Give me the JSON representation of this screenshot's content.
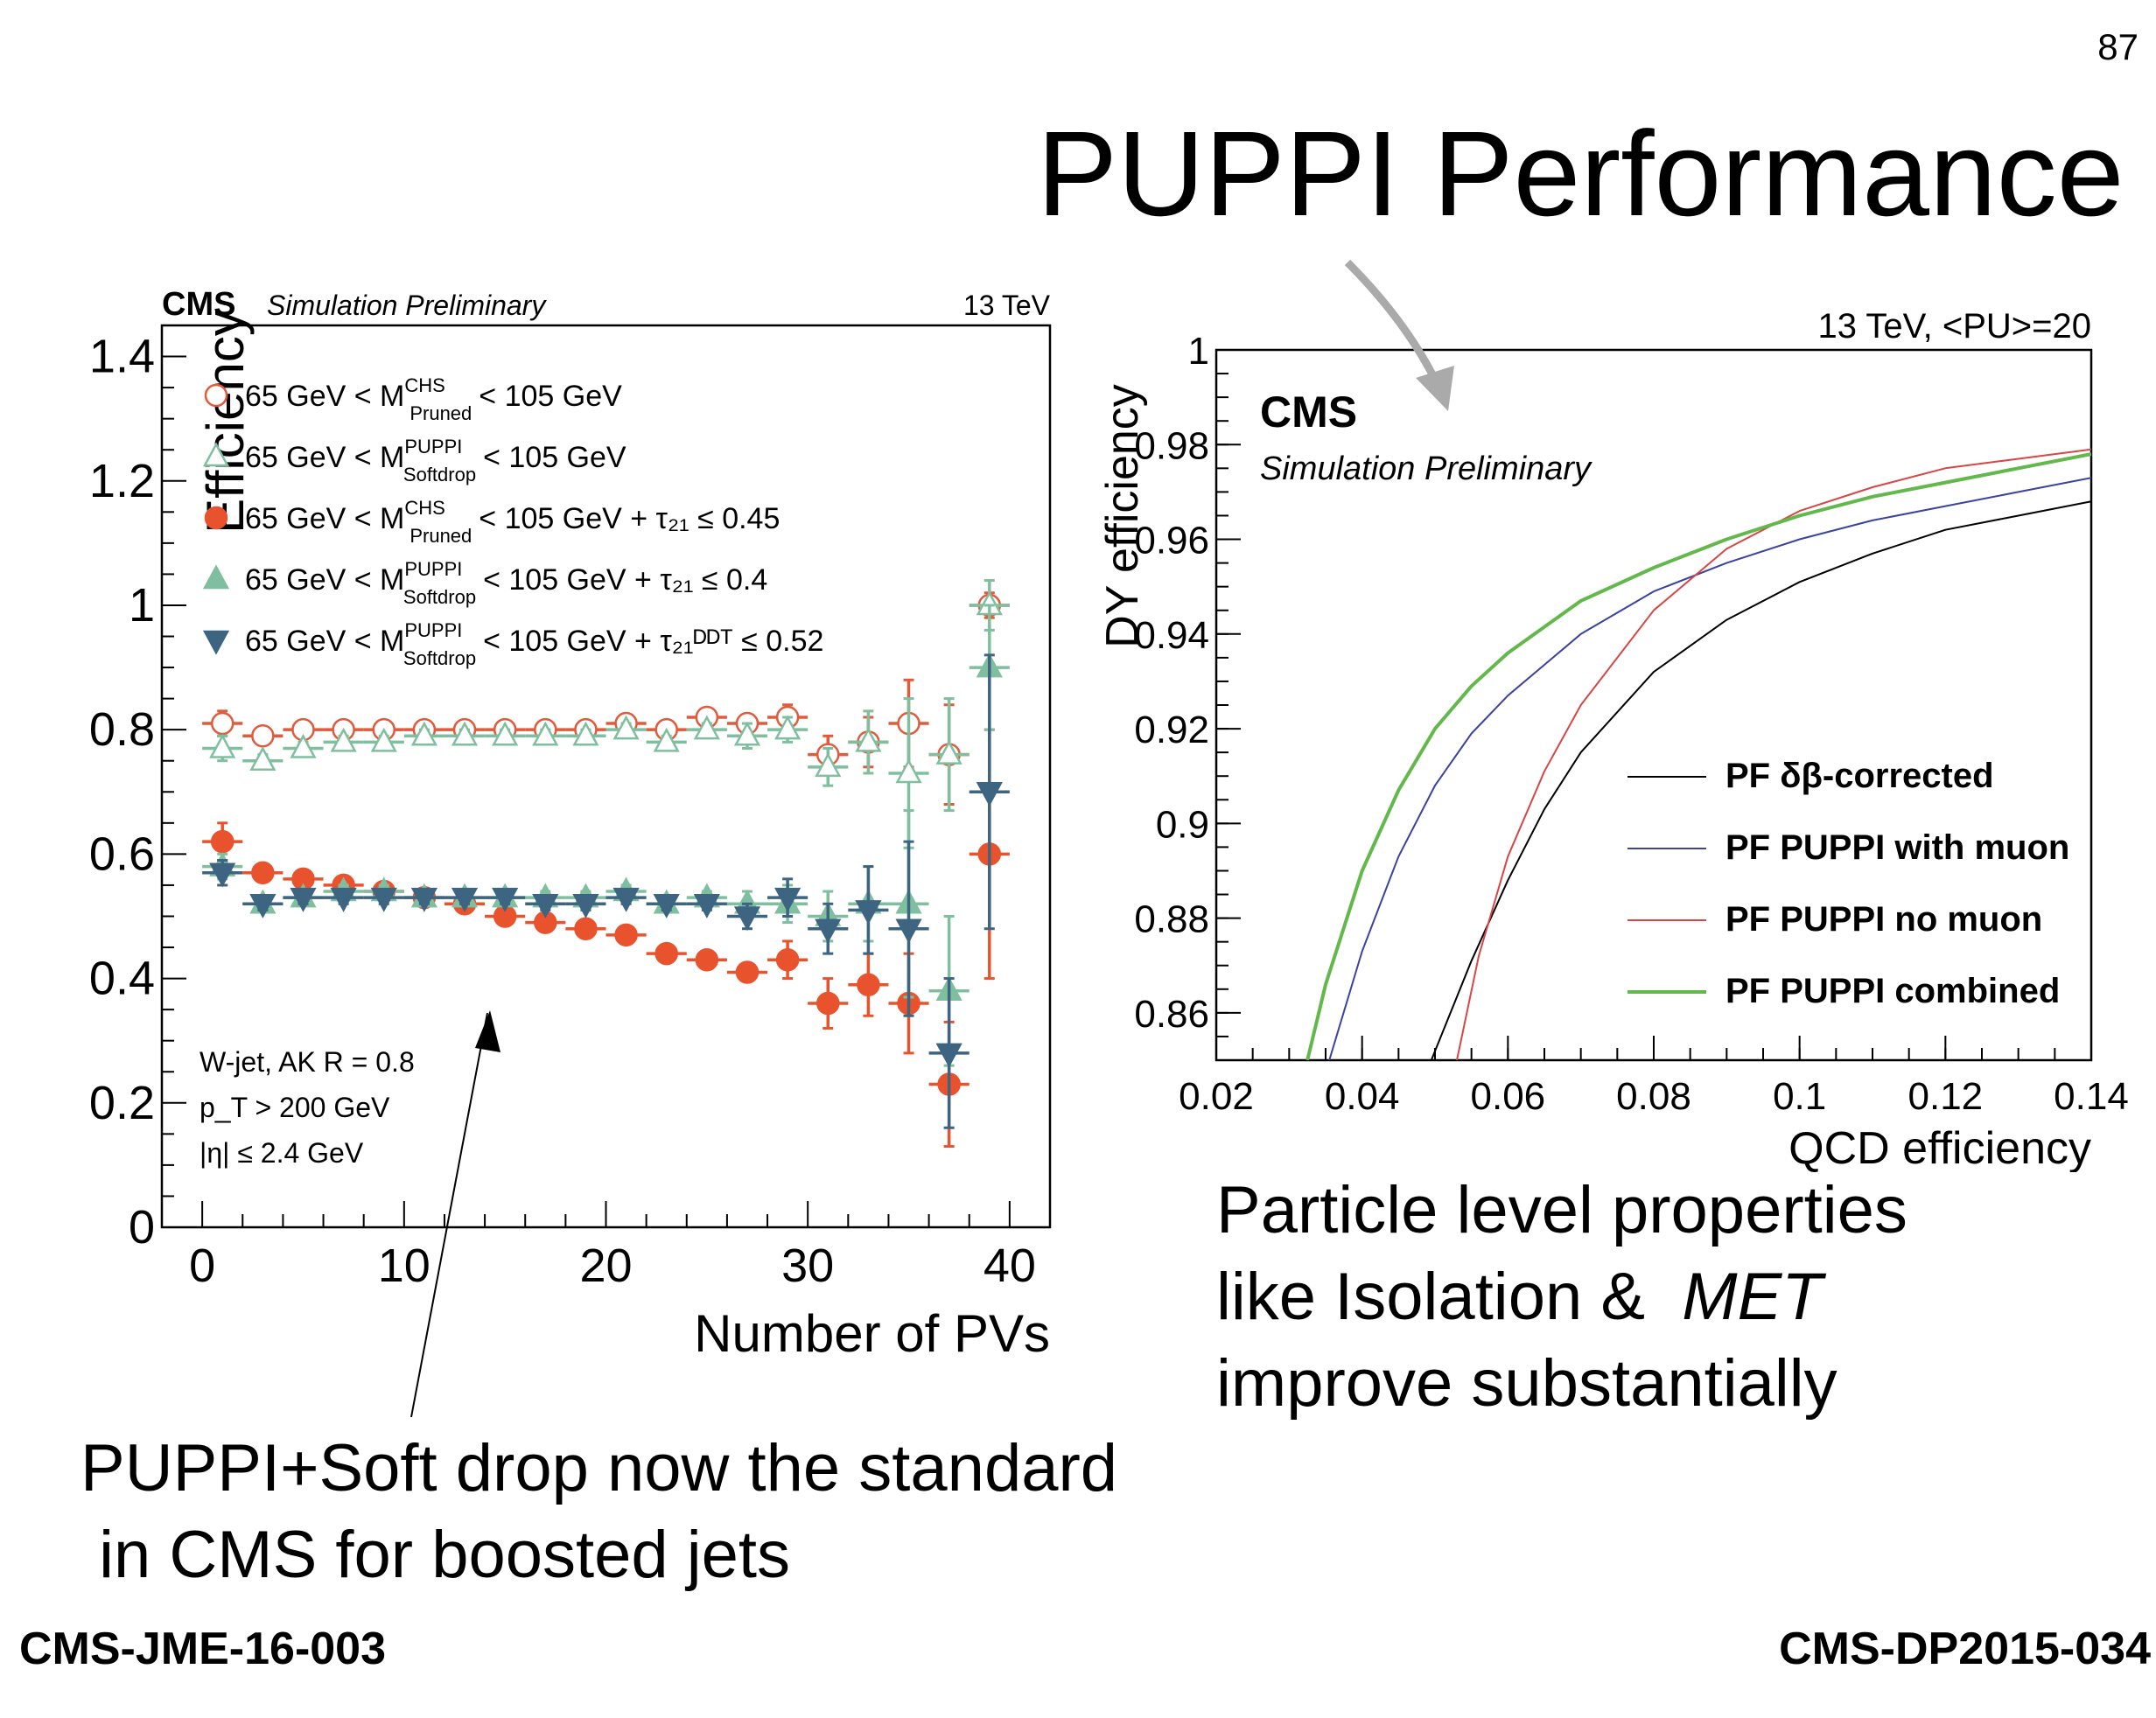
{
  "slide": {
    "number": "87",
    "title": "PUPPI Performance",
    "left_text": [
      "PUPPI+Soft drop now the standard",
      " in CMS for boosted jets"
    ],
    "right_text": {
      "line1": "Particle level properties",
      "line2_prefix": "like Isolation & ",
      "line2_em": "MET",
      "line3": "improve substantially"
    },
    "ref_left": "CMS-JME-16-003",
    "ref_right": "CMS-DP2015-034"
  },
  "chart_data": [
    {
      "type": "scatter",
      "cms_label": "CMS",
      "sub_label": "Simulation Preliminary",
      "energy_label": "13 TeV",
      "xlabel": "Number of PVs",
      "ylabel": "Efficiency",
      "xlim": [
        -2,
        42
      ],
      "ylim": [
        0,
        1.45
      ],
      "x_ticks": [
        "0",
        "10",
        "20",
        "30",
        "40"
      ],
      "y_ticks": [
        "0",
        "0.2",
        "0.4",
        "0.6",
        "0.8",
        "1",
        "1.2",
        "1.4"
      ],
      "info_lines": [
        "W-jet, AK R = 0.8",
        "p_T > 200 GeV",
        "|η| ≤ 2.4 GeV"
      ],
      "legend": [
        {
          "pre": "65 GeV < M",
          "sup": "CHS",
          "sub": "Pruned",
          "post": "< 105 GeV",
          "marker": "circle-open",
          "color": "#e05a3c"
        },
        {
          "pre": "65 GeV < M",
          "sup": "PUPPI",
          "sub": "Softdrop",
          "post": "< 105 GeV",
          "marker": "triangle-up-open",
          "color": "#7fbf9f"
        },
        {
          "pre": "65 GeV < M",
          "sup": "CHS",
          "sub": "Pruned",
          "post": "< 105 GeV + τ₂₁ ≤ 0.45",
          "marker": "circle-filled",
          "color": "#e8532e"
        },
        {
          "pre": "65 GeV < M",
          "sup": "PUPPI",
          "sub": "Softdrop",
          "post": "< 105 GeV + τ₂₁ ≤ 0.4",
          "marker": "triangle-up-filled",
          "color": "#7fbf9f"
        },
        {
          "pre": "65 GeV < M",
          "sup": "PUPPI",
          "sub": "Softdrop",
          "post": "< 105 GeV + τ₂₁ᴰᴰᵀ ≤ 0.52",
          "marker": "triangle-down-filled",
          "color": "#3d6480"
        }
      ],
      "x": [
        1,
        3,
        5,
        7,
        9,
        11,
        13,
        15,
        17,
        19,
        21,
        23,
        25,
        27,
        29,
        31,
        33,
        35,
        37,
        39
      ],
      "series": [
        {
          "values": [
            0.81,
            0.79,
            0.8,
            0.8,
            0.8,
            0.8,
            0.8,
            0.8,
            0.8,
            0.8,
            0.81,
            0.8,
            0.82,
            0.81,
            0.82,
            0.76,
            0.78,
            0.81,
            0.76,
            1.0
          ],
          "errors": [
            0.02,
            0.01,
            0.01,
            0.01,
            0.01,
            0.01,
            0.01,
            0.01,
            0.01,
            0.01,
            0.01,
            0.01,
            0.01,
            0.01,
            0.02,
            0.03,
            0.04,
            0.07,
            0.08,
            0.02
          ]
        },
        {
          "values": [
            0.77,
            0.75,
            0.77,
            0.78,
            0.78,
            0.79,
            0.79,
            0.79,
            0.79,
            0.79,
            0.8,
            0.78,
            0.8,
            0.79,
            0.8,
            0.74,
            0.78,
            0.73,
            0.76,
            1.0
          ],
          "errors": [
            0.02,
            0.01,
            0.01,
            0.01,
            0.01,
            0.01,
            0.01,
            0.01,
            0.01,
            0.01,
            0.01,
            0.01,
            0.01,
            0.02,
            0.02,
            0.03,
            0.05,
            0.12,
            0.09,
            0.04
          ]
        },
        {
          "values": [
            0.62,
            0.57,
            0.56,
            0.55,
            0.54,
            0.53,
            0.52,
            0.5,
            0.49,
            0.48,
            0.47,
            0.44,
            0.43,
            0.41,
            0.43,
            0.36,
            0.39,
            0.36,
            0.23,
            0.6
          ],
          "errors": [
            0.03,
            0.01,
            0.01,
            0.01,
            0.01,
            0.01,
            0.01,
            0.01,
            0.01,
            0.01,
            0.01,
            0.01,
            0.01,
            0.01,
            0.03,
            0.04,
            0.05,
            0.08,
            0.1,
            0.2
          ]
        },
        {
          "values": [
            0.58,
            0.52,
            0.53,
            0.54,
            0.54,
            0.53,
            0.53,
            0.53,
            0.53,
            0.53,
            0.54,
            0.52,
            0.53,
            0.52,
            0.52,
            0.5,
            0.52,
            0.52,
            0.38,
            0.9
          ],
          "errors": [
            0.02,
            0.01,
            0.01,
            0.01,
            0.01,
            0.01,
            0.01,
            0.01,
            0.01,
            0.01,
            0.01,
            0.01,
            0.01,
            0.02,
            0.03,
            0.04,
            0.06,
            0.15,
            0.12,
            0.1
          ]
        },
        {
          "values": [
            0.57,
            0.52,
            0.53,
            0.53,
            0.53,
            0.53,
            0.53,
            0.53,
            0.52,
            0.52,
            0.53,
            0.52,
            0.52,
            0.5,
            0.53,
            0.48,
            0.51,
            0.48,
            0.28,
            0.7
          ],
          "errors": [
            0.02,
            0.01,
            0.01,
            0.01,
            0.01,
            0.01,
            0.01,
            0.01,
            0.01,
            0.01,
            0.01,
            0.01,
            0.01,
            0.02,
            0.03,
            0.04,
            0.07,
            0.14,
            0.12,
            0.22
          ]
        }
      ]
    },
    {
      "type": "line",
      "cms_label": "CMS",
      "sub_label": "Simulation Preliminary",
      "energy_label": "13 TeV, <PU>=20",
      "xlabel": "QCD efficiency",
      "ylabel": "DY efficiency",
      "xlim": [
        0.02,
        0.14
      ],
      "ylim": [
        0.85,
        1.0
      ],
      "x_ticks": [
        "0.02",
        "0.04",
        "0.06",
        "0.08",
        "0.1",
        "0.12",
        "0.14"
      ],
      "y_ticks": [
        "0.86",
        "0.88",
        "0.9",
        "0.92",
        "0.94",
        "0.96",
        "0.98",
        "1"
      ],
      "series": [
        {
          "name": "PF  δβ-corrected",
          "color": "#000000",
          "x": [
            0.0495,
            0.055,
            0.06,
            0.065,
            0.07,
            0.08,
            0.09,
            0.1,
            0.11,
            0.12,
            0.13,
            0.14
          ],
          "y": [
            0.85,
            0.871,
            0.888,
            0.903,
            0.915,
            0.932,
            0.943,
            0.951,
            0.957,
            0.962,
            0.965,
            0.968
          ]
        },
        {
          "name": "PF PUPPI with muon",
          "color": "#3a43a0",
          "x": [
            0.0355,
            0.04,
            0.045,
            0.05,
            0.055,
            0.06,
            0.07,
            0.08,
            0.09,
            0.1,
            0.11,
            0.12,
            0.13,
            0.14
          ],
          "y": [
            0.85,
            0.873,
            0.893,
            0.908,
            0.919,
            0.927,
            0.94,
            0.949,
            0.955,
            0.96,
            0.964,
            0.967,
            0.97,
            0.973
          ]
        },
        {
          "name": "PF PUPPI no muon",
          "color": "#d84545",
          "x": [
            0.053,
            0.056,
            0.06,
            0.065,
            0.07,
            0.08,
            0.09,
            0.1,
            0.11,
            0.12,
            0.13,
            0.14
          ],
          "y": [
            0.85,
            0.872,
            0.893,
            0.911,
            0.925,
            0.945,
            0.958,
            0.966,
            0.971,
            0.975,
            0.977,
            0.979
          ]
        },
        {
          "name": "PF PUPPI combined",
          "color": "#62b84a",
          "x": [
            0.0325,
            0.035,
            0.04,
            0.045,
            0.05,
            0.055,
            0.06,
            0.07,
            0.08,
            0.09,
            0.1,
            0.11,
            0.12,
            0.13,
            0.14
          ],
          "y": [
            0.85,
            0.866,
            0.89,
            0.907,
            0.92,
            0.929,
            0.936,
            0.947,
            0.954,
            0.96,
            0.965,
            0.969,
            0.972,
            0.975,
            0.978
          ]
        }
      ]
    }
  ]
}
